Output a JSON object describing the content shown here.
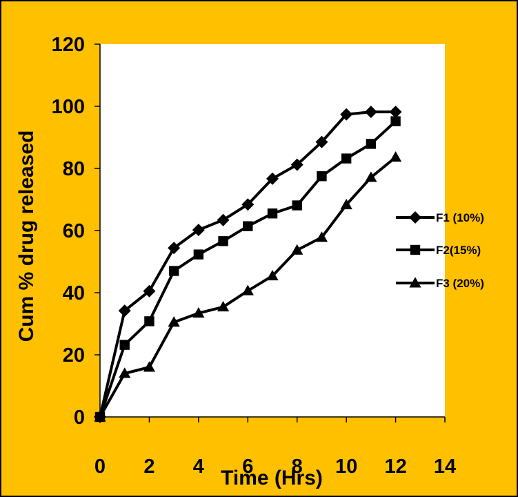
{
  "colors": {
    "background": "#FFC000",
    "plot_area": "#FFFFFF",
    "line": "#000000"
  },
  "chart_data": {
    "type": "line",
    "xlabel": "Time (Hrs)",
    "ylabel": "Cum % drug released",
    "xlim": [
      0,
      14
    ],
    "ylim": [
      0,
      120
    ],
    "x_ticks": [
      0,
      2,
      4,
      6,
      8,
      10,
      12,
      14
    ],
    "y_ticks": [
      0,
      20,
      40,
      60,
      80,
      100,
      120
    ],
    "x_tick_labels": [
      "0",
      "2",
      "4",
      "6",
      "8",
      "10",
      "12",
      "14"
    ],
    "y_tick_labels": [
      "0",
      "20",
      "40",
      "60",
      "80",
      "100",
      "120"
    ],
    "grid": false,
    "legend_position": "right",
    "x": [
      0,
      1,
      2,
      3,
      4,
      5,
      6,
      7,
      8,
      9,
      10,
      11,
      12
    ],
    "series": [
      {
        "name": "F1 (10%)",
        "marker": "diamond",
        "values": [
          0,
          34.2,
          40.5,
          54.4,
          60.2,
          63.4,
          68.4,
          76.7,
          81.2,
          88.5,
          97.4,
          98.2,
          98.2
        ]
      },
      {
        "name": "F2(15%)",
        "marker": "square",
        "values": [
          0,
          23.2,
          30.8,
          47.0,
          52.3,
          56.6,
          61.4,
          65.5,
          68.1,
          77.5,
          83.2,
          87.9,
          95.2
        ]
      },
      {
        "name": "F3 (20%)",
        "marker": "triangle",
        "values": [
          0,
          14.0,
          16.0,
          30.5,
          33.4,
          35.4,
          40.6,
          45.4,
          53.7,
          57.8,
          68.3,
          77.1,
          83.6
        ]
      }
    ]
  }
}
